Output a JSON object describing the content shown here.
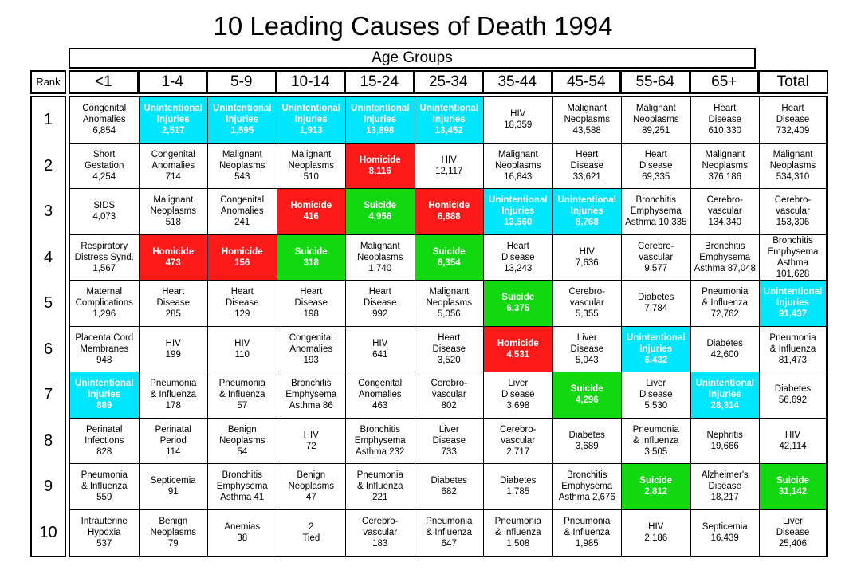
{
  "title": "10 Leading Causes of Death 1994",
  "age_group_label": "Age Groups",
  "rank_header": "Rank",
  "colors": {
    "Unintentional Injuries": "#00e6ff",
    "Homicide": "#ff1a1a",
    "Suicide": "#12d812",
    "other": "#ffffff"
  },
  "chart_data": {
    "type": "table",
    "title": "10 Leading Causes of Death 1994",
    "column_group": "Age Groups",
    "columns": [
      "<1",
      "1-4",
      "5-9",
      "10-14",
      "15-24",
      "25-34",
      "35-44",
      "45-54",
      "55-64",
      "65+",
      "Total"
    ],
    "ranks": [
      "1",
      "2",
      "3",
      "4",
      "5",
      "6",
      "7",
      "8",
      "9",
      "10"
    ],
    "rows": [
      [
        {
          "cause": "Congenital\nAnomalies",
          "count": "6,854"
        },
        {
          "cause": "Unintentional\nInjuries",
          "count": "2,517",
          "hl": "ui"
        },
        {
          "cause": "Unintentional\nInjuries",
          "count": "1,595",
          "hl": "ui"
        },
        {
          "cause": "Unintentional\nInjuries",
          "count": "1,913",
          "hl": "ui"
        },
        {
          "cause": "Unintentional\nInjuries",
          "count": "13,898",
          "hl": "ui"
        },
        {
          "cause": "Unintentional\nInjuries",
          "count": "13,452",
          "hl": "ui"
        },
        {
          "cause": "HIV",
          "count": "18,359"
        },
        {
          "cause": "Malignant\nNeoplasms",
          "count": "43,588"
        },
        {
          "cause": "Malignant\nNeoplasms",
          "count": "89,251"
        },
        {
          "cause": "Heart\nDisease",
          "count": "610,330"
        },
        {
          "cause": "Heart\nDisease",
          "count": "732,409"
        }
      ],
      [
        {
          "cause": "Short\nGestation",
          "count": "4,254"
        },
        {
          "cause": "Congenital\nAnomalies",
          "count": "714"
        },
        {
          "cause": "Malignant\nNeoplasms",
          "count": "543"
        },
        {
          "cause": "Malignant\nNeoplasms",
          "count": "510"
        },
        {
          "cause": "Homicide",
          "count": "8,116",
          "hl": "hom"
        },
        {
          "cause": "HIV",
          "count": "12,117"
        },
        {
          "cause": "Malignant\nNeoplasms",
          "count": "16,843"
        },
        {
          "cause": "Heart\nDisease",
          "count": "33,621"
        },
        {
          "cause": "Heart\nDisease",
          "count": "69,335"
        },
        {
          "cause": "Malignant\nNeoplasms",
          "count": "376,186"
        },
        {
          "cause": "Malignant\nNeoplasms",
          "count": "534,310"
        }
      ],
      [
        {
          "cause": "SIDS",
          "count": "4,073"
        },
        {
          "cause": "Malignant\nNeoplasms",
          "count": "518"
        },
        {
          "cause": "Congenital\nAnomalies",
          "count": "241"
        },
        {
          "cause": "Homicide",
          "count": "416",
          "hl": "hom"
        },
        {
          "cause": "Suicide",
          "count": "4,956",
          "hl": "sui"
        },
        {
          "cause": "Homicide",
          "count": "6,888",
          "hl": "hom"
        },
        {
          "cause": "Unintentional\nInjuries",
          "count": "13,560",
          "hl": "ui"
        },
        {
          "cause": "Unintentional\nInjuries",
          "count": "8,768",
          "hl": "ui"
        },
        {
          "cause": "Bronchitis\nEmphysema",
          "count": "Asthma 10,335"
        },
        {
          "cause": "Cerebro-\nvascular",
          "count": "134,340"
        },
        {
          "cause": "Cerebro-\nvascular",
          "count": "153,306"
        }
      ],
      [
        {
          "cause": "Respiratory\nDistress Synd.",
          "count": "1,567"
        },
        {
          "cause": "Homicide",
          "count": "473",
          "hl": "hom"
        },
        {
          "cause": "Homicide",
          "count": "156",
          "hl": "hom"
        },
        {
          "cause": "Suicide",
          "count": "318",
          "hl": "sui"
        },
        {
          "cause": "Malignant\nNeoplasms",
          "count": "1,740"
        },
        {
          "cause": "Suicide",
          "count": "6,354",
          "hl": "sui"
        },
        {
          "cause": "Heart\nDisease",
          "count": "13,243"
        },
        {
          "cause": "HIV",
          "count": "7,636"
        },
        {
          "cause": "Cerebro-\nvascular",
          "count": "9,577"
        },
        {
          "cause": "Bronchitis\nEmphysema",
          "count": "Asthma 87,048"
        },
        {
          "cause": "Bronchitis\nEmphysema",
          "count": "Asthma 101,628"
        }
      ],
      [
        {
          "cause": "Maternal\nComplications",
          "count": "1,296"
        },
        {
          "cause": "Heart\nDisease",
          "count": "285"
        },
        {
          "cause": "Heart\nDisease",
          "count": "129"
        },
        {
          "cause": "Heart\nDisease",
          "count": "198"
        },
        {
          "cause": "Heart\nDisease",
          "count": "992"
        },
        {
          "cause": "Malignant\nNeoplasms",
          "count": "5,056"
        },
        {
          "cause": "Suicide",
          "count": "6,375",
          "hl": "sui"
        },
        {
          "cause": "Cerebro-\nvascular",
          "count": "5,355"
        },
        {
          "cause": "Diabetes",
          "count": "7,784"
        },
        {
          "cause": "Pneumonia\n& Influenza",
          "count": "72,762"
        },
        {
          "cause": "Unintentional\nInjuries",
          "count": "91,437",
          "hl": "ui"
        }
      ],
      [
        {
          "cause": "Placenta Cord\nMembranes",
          "count": "948"
        },
        {
          "cause": "HIV",
          "count": "199"
        },
        {
          "cause": "HIV",
          "count": "110"
        },
        {
          "cause": "Congenital\nAnomalies",
          "count": "193"
        },
        {
          "cause": "HIV",
          "count": "641"
        },
        {
          "cause": "Heart\nDisease",
          "count": "3,520"
        },
        {
          "cause": "Homicide",
          "count": "4,531",
          "hl": "hom"
        },
        {
          "cause": "Liver\nDisease",
          "count": "5,043"
        },
        {
          "cause": "Unintentional\nInjuries",
          "count": "6,432",
          "hl": "ui"
        },
        {
          "cause": "Diabetes",
          "count": "42,600"
        },
        {
          "cause": "Pneumonia\n& Influenza",
          "count": "81,473"
        }
      ],
      [
        {
          "cause": "Unintentional\nInjuries",
          "count": "889",
          "hl": "ui"
        },
        {
          "cause": "Pneumonia\n& Influenza",
          "count": "178"
        },
        {
          "cause": "Pneumonia\n& Influenza",
          "count": "57"
        },
        {
          "cause": "Bronchitis\nEmphysema",
          "count": "Asthma 86"
        },
        {
          "cause": "Congenital\nAnomalies",
          "count": "463"
        },
        {
          "cause": "Cerebro-\nvascular",
          "count": "802"
        },
        {
          "cause": "Liver\nDisease",
          "count": "3,698"
        },
        {
          "cause": "Suicide",
          "count": "4,296",
          "hl": "sui"
        },
        {
          "cause": "Liver\nDisease",
          "count": "5,530"
        },
        {
          "cause": "Unintentional\nInjuries",
          "count": "28,314",
          "hl": "ui"
        },
        {
          "cause": "Diabetes",
          "count": "56,692"
        }
      ],
      [
        {
          "cause": "Perinatal\nInfections",
          "count": "828"
        },
        {
          "cause": "Perinatal\nPeriod",
          "count": "114"
        },
        {
          "cause": "Benign\nNeoplasms",
          "count": "54"
        },
        {
          "cause": "HIV",
          "count": "72"
        },
        {
          "cause": "Bronchitis\nEmphysema",
          "count": "Asthma 232"
        },
        {
          "cause": "Liver\nDisease",
          "count": "733"
        },
        {
          "cause": "Cerebro-\nvascular",
          "count": "2,717"
        },
        {
          "cause": "Diabetes",
          "count": "3,689"
        },
        {
          "cause": "Pneumonia\n& Influenza",
          "count": "3,505"
        },
        {
          "cause": "Nephritis",
          "count": "19,666"
        },
        {
          "cause": "HIV",
          "count": "42,114"
        }
      ],
      [
        {
          "cause": "Pneumonia\n& Influenza",
          "count": "559"
        },
        {
          "cause": "Septicemia",
          "count": "91"
        },
        {
          "cause": "Bronchitis\nEmphysema",
          "count": "Asthma 41"
        },
        {
          "cause": "Benign\nNeoplasms",
          "count": "47"
        },
        {
          "cause": "Pneumonia\n& Influenza",
          "count": "221"
        },
        {
          "cause": "Diabetes",
          "count": "682"
        },
        {
          "cause": "Diabetes",
          "count": "1,785"
        },
        {
          "cause": "Bronchitis\nEmphysema",
          "count": "Asthma 2,676"
        },
        {
          "cause": "Suicide",
          "count": "2,812",
          "hl": "sui"
        },
        {
          "cause": "Alzheimer's\nDisease",
          "count": "18,217"
        },
        {
          "cause": "Suicide",
          "count": "31,142",
          "hl": "sui"
        }
      ],
      [
        {
          "cause": "Intrauterine\nHypoxia",
          "count": "537"
        },
        {
          "cause": "Benign\nNeoplasms",
          "count": "79"
        },
        {
          "cause": "Anemias",
          "count": "38"
        },
        {
          "cause": "2",
          "count": "Tied"
        },
        {
          "cause": "Cerebro-\nvascular",
          "count": "183"
        },
        {
          "cause": "Pneumonia\n& Influenza",
          "count": "647"
        },
        {
          "cause": "Pneumonia\n& Influenza",
          "count": "1,508"
        },
        {
          "cause": "Pneumonia\n& Influenza",
          "count": "1,985"
        },
        {
          "cause": "HIV",
          "count": "2,186"
        },
        {
          "cause": "Septicemia",
          "count": "16,439"
        },
        {
          "cause": "Liver\nDisease",
          "count": "25,406"
        }
      ]
    ]
  }
}
